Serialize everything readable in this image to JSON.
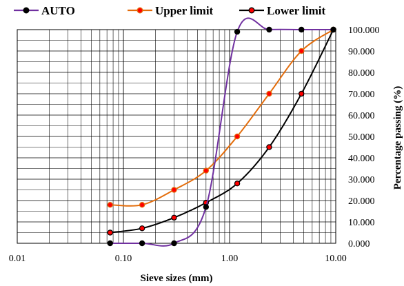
{
  "chart_data": {
    "type": "line",
    "xscale": "log",
    "xlim": [
      0.01,
      10
    ],
    "ylim": [
      0,
      100
    ],
    "xlabel": "Sieve sizes (mm)",
    "ylabel": "Percentage passing (%)",
    "x_tick_labels": [
      "0.01",
      "0.10",
      "1.00",
      "10.00"
    ],
    "y_tick_labels": [
      "0.000",
      "10.000",
      "20.000",
      "30.000",
      "40.000",
      "50.000",
      "60.000",
      "70.000",
      "80.000",
      "90.000",
      "100.000"
    ],
    "grid": true,
    "legend_position": "top",
    "series": [
      {
        "name": "AUTO",
        "line_color": "#7030A0",
        "marker_fill": "#000000",
        "marker_edge": "#000000",
        "x": [
          0.075,
          0.15,
          0.3,
          0.6,
          1.18,
          2.36,
          4.75,
          9.5
        ],
        "y": [
          0,
          0,
          0,
          17,
          99,
          100,
          100,
          100
        ]
      },
      {
        "name": "Upper limit",
        "line_color": "#E36C0A",
        "marker_fill": "#FF0000",
        "marker_edge": "#E36C0A",
        "x": [
          0.075,
          0.15,
          0.3,
          0.6,
          1.18,
          2.36,
          4.75,
          9.5
        ],
        "y": [
          18,
          18,
          25,
          34,
          50,
          70,
          90,
          100
        ]
      },
      {
        "name": "Lower limit",
        "line_color": "#000000",
        "marker_fill": "#FF0000",
        "marker_edge": "#000000",
        "x": [
          0.075,
          0.15,
          0.3,
          0.6,
          1.18,
          2.36,
          4.75,
          9.5
        ],
        "y": [
          5,
          7,
          12,
          19,
          28,
          45,
          70,
          100
        ]
      }
    ]
  }
}
